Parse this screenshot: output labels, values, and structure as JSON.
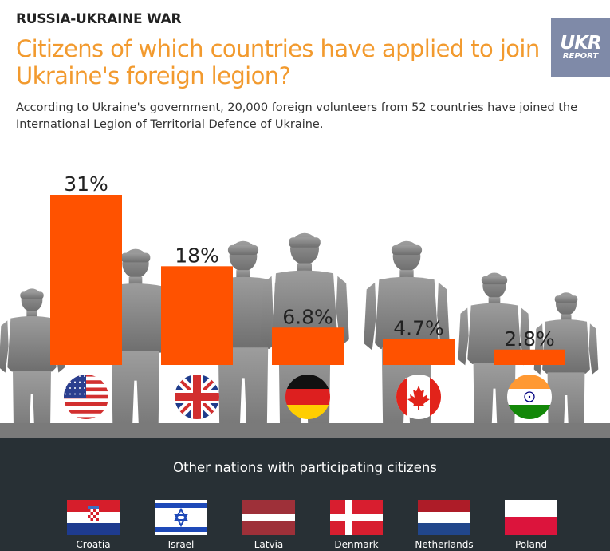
{
  "header": {
    "kicker": "RUSSIA-UKRAINE WAR",
    "title": "Citizens of which countries have applied to join Ukraine's foreign legion?",
    "subtitle": "According to Ukraine's government, 20,000 foreign volunteers from 52 countries have joined the International Legion of Territorial Defence of Ukraine."
  },
  "logo": {
    "line1": "UKR",
    "line2": "REPORT"
  },
  "colors": {
    "bar": "#ff5200",
    "title": "#f29a2e",
    "silhouette": "#8e8e8e",
    "panel": "#283035"
  },
  "chart_data": {
    "type": "bar",
    "categories": [
      "United States",
      "United Kingdom",
      "Germany",
      "Canada",
      "India"
    ],
    "values": [
      31,
      18,
      6.8,
      4.7,
      2.8
    ],
    "data_labels": [
      "31%",
      "18%",
      "6.8%",
      "4.7%",
      "2.8%"
    ],
    "category_icons": [
      "usa-flag-icon",
      "uk-flag-icon",
      "germany-flag-icon",
      "canada-flag-icon",
      "india-flag-icon"
    ],
    "ylim": [
      0,
      31
    ],
    "grid": false,
    "legend": "none"
  },
  "other_nations": {
    "title": "Other nations with participating citizens",
    "items": [
      {
        "name": "Croatia",
        "icon": "croatia-flag-icon"
      },
      {
        "name": "Israel",
        "icon": "israel-flag-icon"
      },
      {
        "name": "Latvia",
        "icon": "latvia-flag-icon"
      },
      {
        "name": "Denmark",
        "icon": "denmark-flag-icon"
      },
      {
        "name": "Netherlands",
        "icon": "netherlands-flag-icon"
      },
      {
        "name": "Poland",
        "icon": "poland-flag-icon"
      }
    ]
  }
}
